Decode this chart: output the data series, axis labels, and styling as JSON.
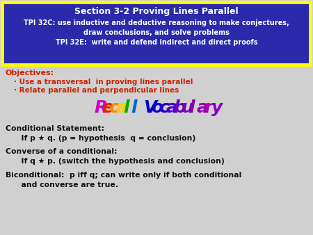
{
  "bg_color": "#d0d0d0",
  "header_bg": "#2a2aaa",
  "header_border": "#ffff00",
  "header_title": "Section 3-2 Proving Lines Parallel",
  "header_line1": "TPI 32C: use inductive and deductive reasoning to make conjectures,",
  "header_line2": "draw conclusions, and solve problems",
  "header_line3": "TPI 32E:  write and defend indirect and direct proofs",
  "objectives_label": "Objectives:",
  "obj1": "Use a transversal  in proving lines parallel",
  "obj2": "Relate parallel and perpendicular lines",
  "cond_title": "Conditional Statement:",
  "cond_body": "      If p ★ q. (p = hypothesis  q = conclusion)",
  "conv_title": "Converse of a conditional:",
  "conv_body": "      If q ★ p. (switch the hypothesis and conclusion)",
  "bicond1": "Biconditional:  p iff q; can write only if both conditional",
  "bicond2": "      and converse are true.",
  "red": "#cc2200",
  "black": "#111111",
  "recall_letters": [
    "R",
    "e",
    "c",
    "a",
    "l",
    "l"
  ],
  "recall_colors": [
    "#cc00cc",
    "#dd2200",
    "#ff8800",
    "#ffcc00",
    "#00aa00",
    "#0066cc"
  ],
  "vocab_letters": [
    "V",
    "o",
    "c",
    "a",
    "b",
    "u",
    "l",
    "a",
    "r",
    "y"
  ],
  "vocab_colors": [
    "#0000cc",
    "#1100cc",
    "#2200cc",
    "#4400cc",
    "#6600bb",
    "#7700bb",
    "#8800aa",
    "#9900aa",
    "#aa00aa",
    "#8800cc"
  ]
}
